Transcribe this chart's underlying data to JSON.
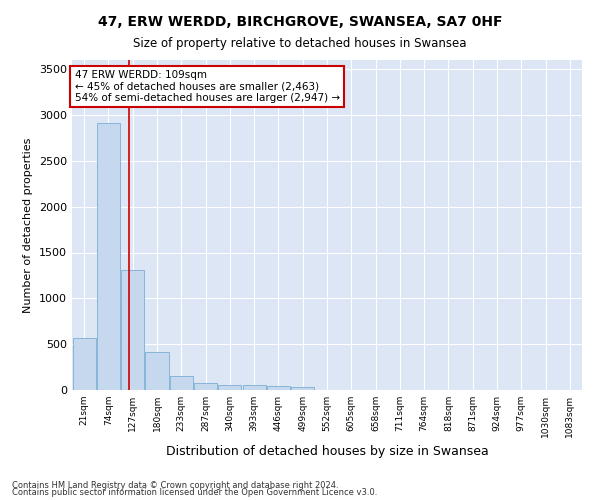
{
  "title": "47, ERW WERDD, BIRCHGROVE, SWANSEA, SA7 0HF",
  "subtitle": "Size of property relative to detached houses in Swansea",
  "xlabel": "Distribution of detached houses by size in Swansea",
  "ylabel": "Number of detached properties",
  "bar_color": "#c5d8ee",
  "bar_edge_color": "#7aadd4",
  "background_color": "#dce6f5",
  "grid_color": "#ffffff",
  "fig_facecolor": "#ffffff",
  "bin_labels": [
    "21sqm",
    "74sqm",
    "127sqm",
    "180sqm",
    "233sqm",
    "287sqm",
    "340sqm",
    "393sqm",
    "446sqm",
    "499sqm",
    "552sqm",
    "605sqm",
    "658sqm",
    "711sqm",
    "764sqm",
    "818sqm",
    "871sqm",
    "924sqm",
    "977sqm",
    "1030sqm",
    "1083sqm"
  ],
  "bar_heights": [
    570,
    2910,
    1310,
    410,
    155,
    80,
    60,
    55,
    40,
    35,
    0,
    0,
    0,
    0,
    0,
    0,
    0,
    0,
    0,
    0,
    0
  ],
  "ylim": [
    0,
    3600
  ],
  "yticks": [
    0,
    500,
    1000,
    1500,
    2000,
    2500,
    3000,
    3500
  ],
  "property_line_x": 1.85,
  "annotation_line1": "47 ERW WERDD: 109sqm",
  "annotation_line2": "← 45% of detached houses are smaller (2,463)",
  "annotation_line3": "54% of semi-detached houses are larger (2,947) →",
  "annotation_box_color": "#ffffff",
  "annotation_border_color": "#cc0000",
  "footnote1": "Contains HM Land Registry data © Crown copyright and database right 2024.",
  "footnote2": "Contains public sector information licensed under the Open Government Licence v3.0."
}
